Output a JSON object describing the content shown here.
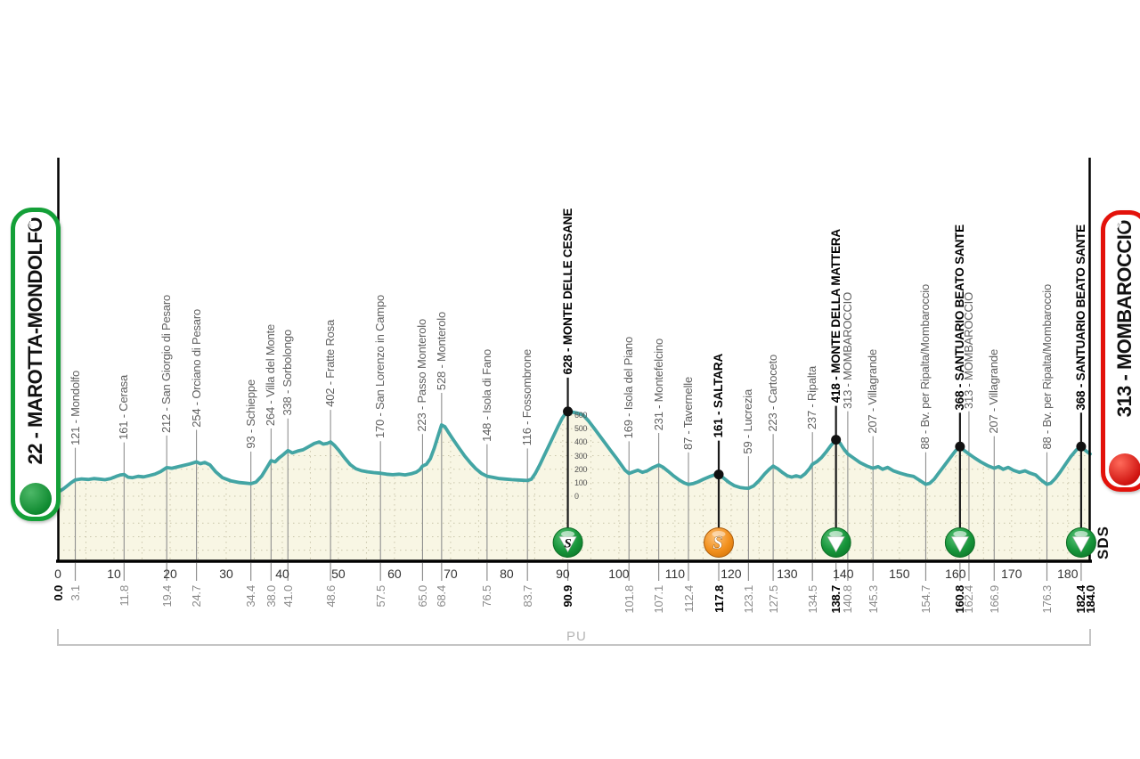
{
  "stage": {
    "start_label": "22 - MAROTTA-MONDOLFO",
    "finish_label": "313 - MOMBAROCCIO",
    "region_label": "PU",
    "logo_text": "SDS",
    "colors": {
      "profile_line": "#43a5a4",
      "profile_fill": "#f8f6e4",
      "grid": "#c9c5aa",
      "start_green": "#14a038",
      "finish_red": "#e3120b",
      "sprint_orange": "#f2901d",
      "kom_green": "#17953a"
    }
  },
  "chart_data": {
    "type": "area",
    "x_unit": "km",
    "y_unit": "m",
    "x_range": [
      0,
      184
    ],
    "km_ticks": [
      0,
      10,
      20,
      30,
      40,
      50,
      60,
      70,
      80,
      90,
      100,
      110,
      120,
      130,
      140,
      150,
      160,
      170,
      180
    ],
    "elevation_scale_labels": [
      600,
      500,
      400,
      300,
      200,
      100,
      0
    ],
    "waypoints": [
      {
        "km": 0.0,
        "elev": 30,
        "label": null,
        "bold": true,
        "marker": null
      },
      {
        "km": 3.1,
        "elev": 121,
        "label": "121 - Mondolfo",
        "bold": false,
        "marker": null
      },
      {
        "km": 11.8,
        "elev": 161,
        "label": "161 - Cerasa",
        "bold": false,
        "marker": null
      },
      {
        "km": 19.4,
        "elev": 212,
        "label": "212 - San Giorgio di Pesaro",
        "bold": false,
        "marker": null
      },
      {
        "km": 24.7,
        "elev": 254,
        "label": "254 - Orciano di Pesaro",
        "bold": false,
        "marker": null
      },
      {
        "km": 34.4,
        "elev": 93,
        "label": "93 - Schieppe",
        "bold": false,
        "marker": null
      },
      {
        "km": 38.0,
        "elev": 264,
        "label": "264 - Villa del Monte",
        "bold": false,
        "marker": null
      },
      {
        "km": 41.0,
        "elev": 338,
        "label": "338 - Sorbolongo",
        "bold": false,
        "marker": null
      },
      {
        "km": 48.6,
        "elev": 402,
        "label": "402 - Fratte Rosa",
        "bold": false,
        "marker": null
      },
      {
        "km": 57.5,
        "elev": 170,
        "label": "170 - San Lorenzo in Campo",
        "bold": false,
        "marker": null
      },
      {
        "km": 65.0,
        "elev": 223,
        "label": "223 - Passo Monterolo",
        "bold": false,
        "marker": null
      },
      {
        "km": 68.4,
        "elev": 528,
        "label": "528 - Monterolo",
        "bold": false,
        "marker": null
      },
      {
        "km": 76.5,
        "elev": 148,
        "label": "148 - Isola di Fano",
        "bold": false,
        "marker": null
      },
      {
        "km": 83.7,
        "elev": 116,
        "label": "116 - Fossombrone",
        "bold": false,
        "marker": null
      },
      {
        "km": 90.9,
        "elev": 628,
        "label": "628 - MONTE DELLE CESANE",
        "bold": true,
        "marker": "kom_s"
      },
      {
        "km": 101.8,
        "elev": 169,
        "label": "169 - Isola del Piano",
        "bold": false,
        "marker": null
      },
      {
        "km": 107.1,
        "elev": 231,
        "label": "231 - Montefelcino",
        "bold": false,
        "marker": null
      },
      {
        "km": 112.4,
        "elev": 87,
        "label": "87 - Tavernelle",
        "bold": false,
        "marker": null
      },
      {
        "km": 117.8,
        "elev": 161,
        "label": "161 - SALTARA",
        "bold": true,
        "marker": "sprint"
      },
      {
        "km": 123.1,
        "elev": 59,
        "label": "59 - Lucrezia",
        "bold": false,
        "marker": null
      },
      {
        "km": 127.5,
        "elev": 223,
        "label": "223 - Cartoceto",
        "bold": false,
        "marker": null
      },
      {
        "km": 134.5,
        "elev": 237,
        "label": "237 - Ripalta",
        "bold": false,
        "marker": null
      },
      {
        "km": 138.7,
        "elev": 418,
        "label": "418 - MONTE DELLA MATTERA",
        "bold": true,
        "marker": "kom"
      },
      {
        "km": 140.8,
        "elev": 313,
        "label": "313 - MOMBAROCCIO",
        "bold": false,
        "marker": null
      },
      {
        "km": 145.3,
        "elev": 207,
        "label": "207 - Villagrande",
        "bold": false,
        "marker": null
      },
      {
        "km": 154.7,
        "elev": 88,
        "label": "88 - Bv. per Ripalta/Mombaroccio",
        "bold": false,
        "marker": null
      },
      {
        "km": 160.8,
        "elev": 368,
        "label": "368 - SANTUARIO BEATO SANTE",
        "bold": true,
        "marker": "kom"
      },
      {
        "km": 162.4,
        "elev": 313,
        "label": "313 - MOMBAROCCIO",
        "bold": false,
        "marker": null
      },
      {
        "km": 166.9,
        "elev": 207,
        "label": "207 - Villagrande",
        "bold": false,
        "marker": null
      },
      {
        "km": 176.3,
        "elev": 88,
        "label": "88 - Bv. per Ripalta/Mombaroccio",
        "bold": false,
        "marker": null
      },
      {
        "km": 182.4,
        "elev": 368,
        "label": "368 - SANTUARIO BEATO SANTE",
        "bold": true,
        "marker": "kom"
      },
      {
        "km": 184.0,
        "elev": 313,
        "label": null,
        "bold": true,
        "marker": null
      }
    ],
    "profile": [
      [
        0,
        30
      ],
      [
        1,
        55
      ],
      [
        2.2,
        95
      ],
      [
        3.1,
        121
      ],
      [
        4.2,
        128
      ],
      [
        5.4,
        124
      ],
      [
        6.4,
        131
      ],
      [
        7.4,
        127
      ],
      [
        8.4,
        122
      ],
      [
        9.4,
        130
      ],
      [
        10.4,
        147
      ],
      [
        11.2,
        158
      ],
      [
        11.8,
        161
      ],
      [
        12.5,
        141
      ],
      [
        13.3,
        137
      ],
      [
        14.3,
        147
      ],
      [
        15.3,
        143
      ],
      [
        16.3,
        153
      ],
      [
        17.3,
        164
      ],
      [
        18.3,
        182
      ],
      [
        19.4,
        212
      ],
      [
        20.3,
        207
      ],
      [
        21.3,
        217
      ],
      [
        22.3,
        227
      ],
      [
        23.5,
        239
      ],
      [
        24.7,
        254
      ],
      [
        25.4,
        241
      ],
      [
        26.2,
        250
      ],
      [
        27.1,
        232
      ],
      [
        28.1,
        182
      ],
      [
        29.3,
        138
      ],
      [
        30.8,
        114
      ],
      [
        32.4,
        101
      ],
      [
        34.4,
        93
      ],
      [
        35.3,
        104
      ],
      [
        36.3,
        148
      ],
      [
        37.2,
        208
      ],
      [
        38,
        264
      ],
      [
        38.7,
        254
      ],
      [
        39.4,
        283
      ],
      [
        40.2,
        309
      ],
      [
        41,
        338
      ],
      [
        41.8,
        321
      ],
      [
        42.7,
        334
      ],
      [
        43.7,
        344
      ],
      [
        44.7,
        367
      ],
      [
        45.7,
        391
      ],
      [
        46.6,
        402
      ],
      [
        47.3,
        386
      ],
      [
        48,
        391
      ],
      [
        48.6,
        402
      ],
      [
        49.3,
        377
      ],
      [
        50.1,
        338
      ],
      [
        51.1,
        284
      ],
      [
        52.1,
        234
      ],
      [
        53.1,
        204
      ],
      [
        54.1,
        189
      ],
      [
        55.2,
        181
      ],
      [
        56.3,
        175
      ],
      [
        57.5,
        170
      ],
      [
        58.6,
        163
      ],
      [
        59.7,
        159
      ],
      [
        60.8,
        163
      ],
      [
        61.9,
        158
      ],
      [
        63,
        166
      ],
      [
        63.9,
        179
      ],
      [
        64.5,
        196
      ],
      [
        65,
        223
      ],
      [
        65.7,
        237
      ],
      [
        66.4,
        278
      ],
      [
        67.1,
        358
      ],
      [
        67.8,
        452
      ],
      [
        68.4,
        528
      ],
      [
        69,
        514
      ],
      [
        69.7,
        468
      ],
      [
        70.5,
        417
      ],
      [
        71.5,
        357
      ],
      [
        72.5,
        298
      ],
      [
        73.5,
        248
      ],
      [
        74.5,
        203
      ],
      [
        75.5,
        169
      ],
      [
        76.5,
        148
      ],
      [
        77.6,
        139
      ],
      [
        78.7,
        131
      ],
      [
        79.8,
        127
      ],
      [
        80.9,
        123
      ],
      [
        82,
        120
      ],
      [
        83.7,
        116
      ],
      [
        84.4,
        126
      ],
      [
        85.1,
        168
      ],
      [
        85.9,
        232
      ],
      [
        86.7,
        302
      ],
      [
        87.5,
        372
      ],
      [
        88.3,
        442
      ],
      [
        89.1,
        512
      ],
      [
        89.9,
        578
      ],
      [
        90.4,
        608
      ],
      [
        90.9,
        628
      ],
      [
        91.6,
        624
      ],
      [
        92.6,
        616
      ],
      [
        93.6,
        602
      ],
      [
        94.6,
        557
      ],
      [
        95.6,
        502
      ],
      [
        96.6,
        446
      ],
      [
        97.6,
        390
      ],
      [
        98.6,
        334
      ],
      [
        99.6,
        280
      ],
      [
        100.5,
        228
      ],
      [
        101.1,
        193
      ],
      [
        101.8,
        169
      ],
      [
        102.6,
        181
      ],
      [
        103.4,
        193
      ],
      [
        104.2,
        177
      ],
      [
        105.1,
        189
      ],
      [
        106.1,
        213
      ],
      [
        107.1,
        231
      ],
      [
        107.9,
        214
      ],
      [
        108.8,
        184
      ],
      [
        109.8,
        149
      ],
      [
        110.8,
        119
      ],
      [
        111.6,
        99
      ],
      [
        112.4,
        87
      ],
      [
        113.2,
        93
      ],
      [
        114.1,
        106
      ],
      [
        115.1,
        126
      ],
      [
        116.1,
        144
      ],
      [
        117,
        157
      ],
      [
        117.8,
        161
      ],
      [
        118.7,
        133
      ],
      [
        119.6,
        103
      ],
      [
        120.6,
        78
      ],
      [
        121.6,
        65
      ],
      [
        122.4,
        60
      ],
      [
        123.1,
        59
      ],
      [
        124,
        76
      ],
      [
        125,
        116
      ],
      [
        126,
        166
      ],
      [
        126.8,
        199
      ],
      [
        127.5,
        223
      ],
      [
        128.3,
        204
      ],
      [
        129.2,
        174
      ],
      [
        130,
        151
      ],
      [
        130.8,
        141
      ],
      [
        131.6,
        151
      ],
      [
        132.4,
        141
      ],
      [
        133.2,
        166
      ],
      [
        134,
        206
      ],
      [
        134.5,
        237
      ],
      [
        135.3,
        256
      ],
      [
        136.1,
        286
      ],
      [
        137,
        331
      ],
      [
        137.8,
        376
      ],
      [
        138.7,
        418
      ],
      [
        139.4,
        394
      ],
      [
        140.1,
        349
      ],
      [
        140.8,
        313
      ],
      [
        141.8,
        284
      ],
      [
        143,
        249
      ],
      [
        144.2,
        224
      ],
      [
        145.3,
        207
      ],
      [
        146.2,
        219
      ],
      [
        147,
        199
      ],
      [
        147.9,
        213
      ],
      [
        148.9,
        189
      ],
      [
        150.1,
        171
      ],
      [
        151.3,
        157
      ],
      [
        152.5,
        147
      ],
      [
        153.6,
        118
      ],
      [
        154.7,
        88
      ],
      [
        155.4,
        96
      ],
      [
        156.2,
        126
      ],
      [
        157,
        171
      ],
      [
        158,
        226
      ],
      [
        159,
        281
      ],
      [
        160,
        336
      ],
      [
        160.8,
        368
      ],
      [
        161.6,
        337
      ],
      [
        162.4,
        313
      ],
      [
        163.4,
        284
      ],
      [
        164.5,
        254
      ],
      [
        165.7,
        227
      ],
      [
        166.9,
        207
      ],
      [
        167.7,
        219
      ],
      [
        168.5,
        199
      ],
      [
        169.4,
        214
      ],
      [
        170.4,
        191
      ],
      [
        171.4,
        177
      ],
      [
        172.4,
        188
      ],
      [
        173.3,
        171
      ],
      [
        174.3,
        157
      ],
      [
        175.3,
        119
      ],
      [
        176.3,
        88
      ],
      [
        177,
        97
      ],
      [
        177.8,
        131
      ],
      [
        178.7,
        181
      ],
      [
        179.6,
        236
      ],
      [
        180.5,
        291
      ],
      [
        181.5,
        341
      ],
      [
        182.4,
        368
      ],
      [
        183.2,
        337
      ],
      [
        184,
        313
      ]
    ]
  }
}
